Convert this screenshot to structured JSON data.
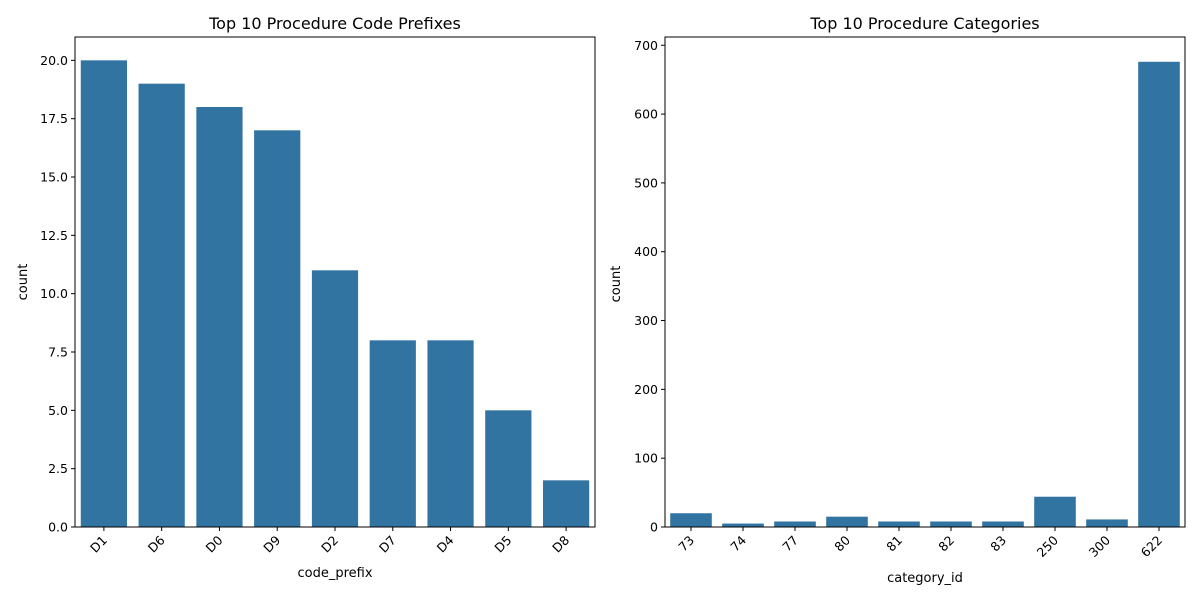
{
  "chart_data": [
    {
      "type": "bar",
      "title": "Top 10 Procedure Code Prefixes",
      "xlabel": "code_prefix",
      "ylabel": "count",
      "categories": [
        "D1",
        "D6",
        "D0",
        "D9",
        "D2",
        "D7",
        "D4",
        "D5",
        "D8"
      ],
      "values": [
        20,
        19,
        18,
        17,
        11,
        8,
        8,
        5,
        2
      ],
      "ylim": [
        0,
        21
      ],
      "yticks": [
        0,
        2.5,
        5,
        7.5,
        10,
        12.5,
        15,
        17.5,
        20
      ],
      "ytick_labels": [
        "0.0",
        "2.5",
        "5.0",
        "7.5",
        "10.0",
        "12.5",
        "15.0",
        "17.5",
        "20.0"
      ],
      "xtick_rotation_deg": 45,
      "grid": false,
      "bar_color": "#3274a1"
    },
    {
      "type": "bar",
      "title": "Top 10 Procedure Categories",
      "xlabel": "category_id",
      "ylabel": "count",
      "categories": [
        "73",
        "74",
        "77",
        "80",
        "81",
        "82",
        "83",
        "250",
        "300",
        "622"
      ],
      "values": [
        20,
        5,
        8,
        15,
        8,
        8,
        8,
        44,
        11,
        676
      ],
      "ylim": [
        0,
        712
      ],
      "yticks": [
        0,
        100,
        200,
        300,
        400,
        500,
        600,
        700
      ],
      "ytick_labels": [
        "0",
        "100",
        "200",
        "300",
        "400",
        "500",
        "600",
        "700"
      ],
      "xtick_rotation_deg": 45,
      "grid": false,
      "bar_color": "#3274a1"
    }
  ]
}
